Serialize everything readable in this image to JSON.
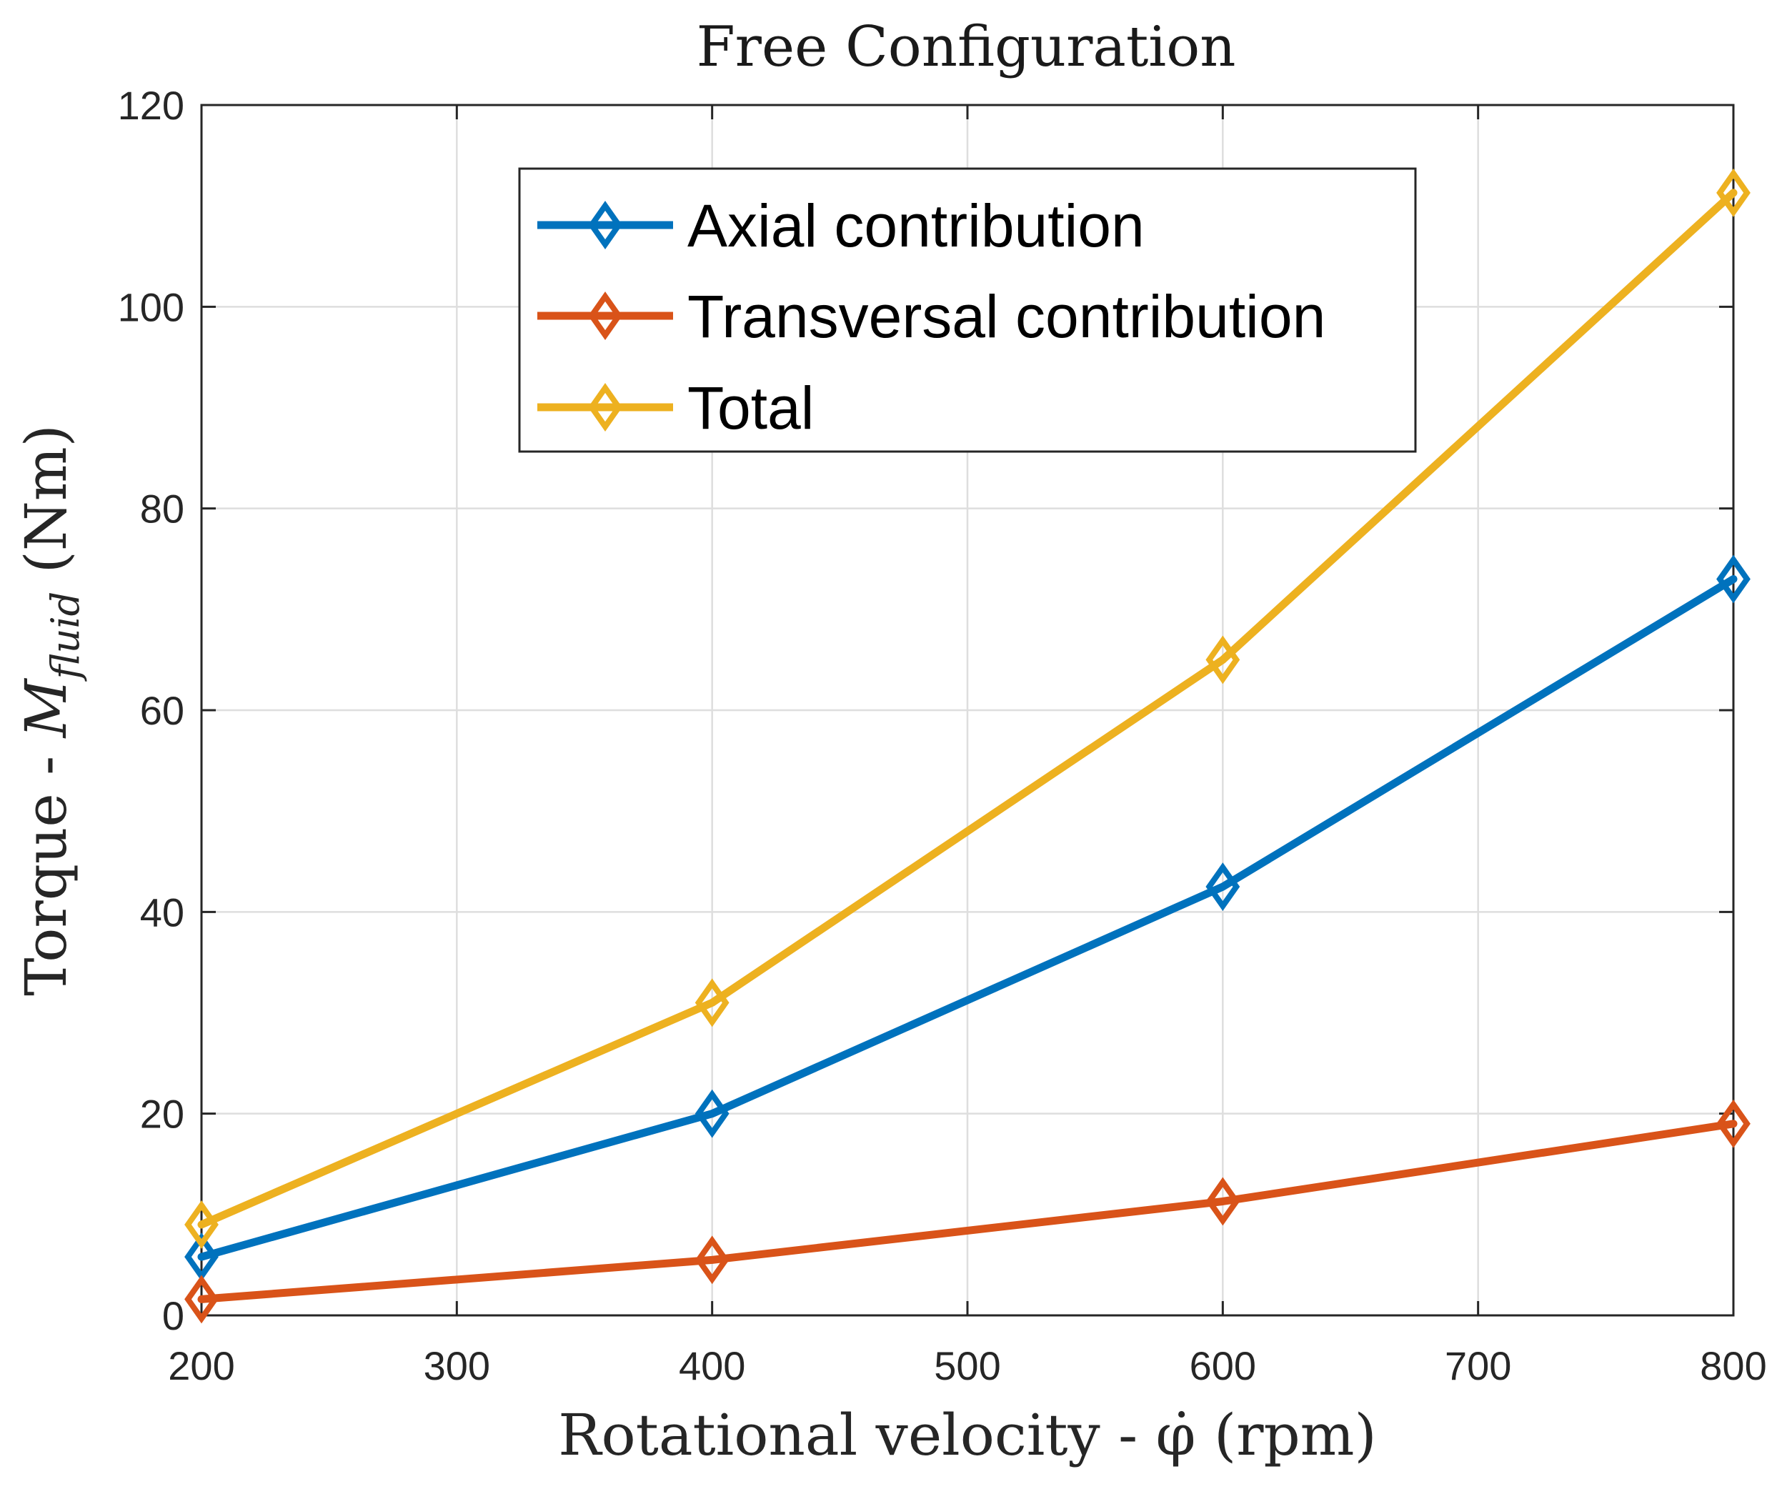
{
  "chart_data": {
    "type": "line",
    "title": "Free Configuration",
    "xlabel": "Rotational velocity - φ̇ (rpm)",
    "ylabel_parts": {
      "prefix": "Torque - ",
      "var": "M",
      "sub": "fluid",
      "suffix": " (Nm)"
    },
    "xlim": [
      200,
      800
    ],
    "ylim": [
      0,
      120
    ],
    "xticks": [
      200,
      300,
      400,
      500,
      600,
      700,
      800
    ],
    "yticks": [
      0,
      20,
      40,
      60,
      80,
      100,
      120
    ],
    "grid": true,
    "legend": {
      "position": "top-center"
    },
    "x": [
      200,
      400,
      600,
      800
    ],
    "series": [
      {
        "name": "Axial contribution",
        "color": "#0072BD",
        "marker": "diamond",
        "values": [
          5.8,
          20.0,
          42.5,
          73.0
        ]
      },
      {
        "name": "Transversal contribution",
        "color": "#D95319",
        "marker": "diamond",
        "values": [
          1.6,
          5.5,
          11.3,
          19.0
        ]
      },
      {
        "name": "Total",
        "color": "#EDB120",
        "marker": "diamond",
        "values": [
          9.0,
          31.0,
          65.0,
          111.3
        ]
      }
    ]
  }
}
